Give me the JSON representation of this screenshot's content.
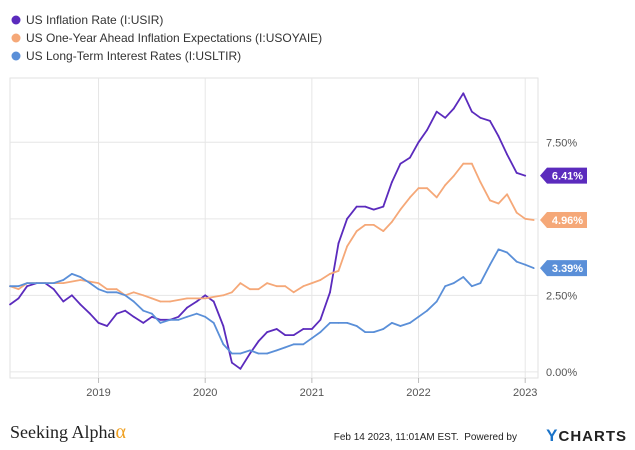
{
  "chart_data": {
    "type": "line",
    "title": "",
    "xlabel": "",
    "ylabel": "",
    "xlim": [
      2018.17,
      2023.12
    ],
    "ylim": [
      -0.2,
      9.6
    ],
    "x_ticks": [
      {
        "value": 2019,
        "label": "2019"
      },
      {
        "value": 2020,
        "label": "2020"
      },
      {
        "value": 2021,
        "label": "2021"
      },
      {
        "value": 2022,
        "label": "2022"
      },
      {
        "value": 2023,
        "label": "2023"
      }
    ],
    "y_ticks": [
      {
        "value": 0.0,
        "label": "0.00%"
      },
      {
        "value": 2.5,
        "label": "2.50%"
      },
      {
        "value": 5.0,
        "label": "5.00%"
      },
      {
        "value": 7.5,
        "label": "7.50%"
      }
    ],
    "grid": true,
    "legend_position": "top-left",
    "series": [
      {
        "name": "US Inflation Rate (I:USIR)",
        "color": "#5b2bbd",
        "last_label": "6.41%",
        "points": [
          [
            2018.17,
            2.2
          ],
          [
            2018.25,
            2.4
          ],
          [
            2018.33,
            2.8
          ],
          [
            2018.42,
            2.9
          ],
          [
            2018.5,
            2.9
          ],
          [
            2018.58,
            2.7
          ],
          [
            2018.67,
            2.3
          ],
          [
            2018.75,
            2.5
          ],
          [
            2018.83,
            2.2
          ],
          [
            2018.92,
            1.9
          ],
          [
            2019.0,
            1.6
          ],
          [
            2019.08,
            1.5
          ],
          [
            2019.17,
            1.9
          ],
          [
            2019.25,
            2.0
          ],
          [
            2019.33,
            1.8
          ],
          [
            2019.42,
            1.6
          ],
          [
            2019.5,
            1.8
          ],
          [
            2019.58,
            1.7
          ],
          [
            2019.67,
            1.7
          ],
          [
            2019.75,
            1.8
          ],
          [
            2019.83,
            2.1
          ],
          [
            2019.92,
            2.3
          ],
          [
            2020.0,
            2.5
          ],
          [
            2020.08,
            2.3
          ],
          [
            2020.17,
            1.5
          ],
          [
            2020.25,
            0.3
          ],
          [
            2020.33,
            0.1
          ],
          [
            2020.42,
            0.6
          ],
          [
            2020.5,
            1.0
          ],
          [
            2020.58,
            1.3
          ],
          [
            2020.67,
            1.4
          ],
          [
            2020.75,
            1.2
          ],
          [
            2020.83,
            1.2
          ],
          [
            2020.92,
            1.4
          ],
          [
            2021.0,
            1.4
          ],
          [
            2021.08,
            1.7
          ],
          [
            2021.17,
            2.6
          ],
          [
            2021.25,
            4.2
          ],
          [
            2021.33,
            5.0
          ],
          [
            2021.42,
            5.4
          ],
          [
            2021.5,
            5.4
          ],
          [
            2021.58,
            5.3
          ],
          [
            2021.67,
            5.4
          ],
          [
            2021.75,
            6.2
          ],
          [
            2021.83,
            6.8
          ],
          [
            2021.92,
            7.0
          ],
          [
            2022.0,
            7.5
          ],
          [
            2022.08,
            7.9
          ],
          [
            2022.17,
            8.5
          ],
          [
            2022.25,
            8.3
          ],
          [
            2022.33,
            8.6
          ],
          [
            2022.42,
            9.1
          ],
          [
            2022.5,
            8.5
          ],
          [
            2022.58,
            8.3
          ],
          [
            2022.67,
            8.2
          ],
          [
            2022.75,
            7.7
          ],
          [
            2022.83,
            7.1
          ],
          [
            2022.92,
            6.5
          ],
          [
            2023.0,
            6.41
          ]
        ]
      },
      {
        "name": "US One-Year Ahead Inflation Expectations (I:USOYAIE)",
        "color": "#f5a878",
        "last_label": "4.96%",
        "points": [
          [
            2018.17,
            2.8
          ],
          [
            2018.25,
            2.7
          ],
          [
            2018.33,
            2.9
          ],
          [
            2018.5,
            2.9
          ],
          [
            2018.67,
            2.9
          ],
          [
            2018.83,
            3.0
          ],
          [
            2019.0,
            2.9
          ],
          [
            2019.08,
            2.7
          ],
          [
            2019.17,
            2.7
          ],
          [
            2019.25,
            2.5
          ],
          [
            2019.33,
            2.6
          ],
          [
            2019.42,
            2.5
          ],
          [
            2019.5,
            2.4
          ],
          [
            2019.58,
            2.3
          ],
          [
            2019.67,
            2.3
          ],
          [
            2019.83,
            2.4
          ],
          [
            2019.92,
            2.4
          ],
          [
            2020.0,
            2.4
          ],
          [
            2020.17,
            2.5
          ],
          [
            2020.25,
            2.6
          ],
          [
            2020.33,
            2.9
          ],
          [
            2020.42,
            2.7
          ],
          [
            2020.5,
            2.7
          ],
          [
            2020.58,
            2.9
          ],
          [
            2020.67,
            2.8
          ],
          [
            2020.75,
            2.8
          ],
          [
            2020.83,
            2.6
          ],
          [
            2020.92,
            2.8
          ],
          [
            2021.0,
            2.9
          ],
          [
            2021.08,
            3.0
          ],
          [
            2021.17,
            3.2
          ],
          [
            2021.25,
            3.3
          ],
          [
            2021.33,
            4.1
          ],
          [
            2021.42,
            4.6
          ],
          [
            2021.5,
            4.8
          ],
          [
            2021.58,
            4.8
          ],
          [
            2021.67,
            4.6
          ],
          [
            2021.75,
            4.9
          ],
          [
            2021.83,
            5.3
          ],
          [
            2021.92,
            5.7
          ],
          [
            2022.0,
            6.0
          ],
          [
            2022.08,
            6.0
          ],
          [
            2022.17,
            5.7
          ],
          [
            2022.25,
            6.1
          ],
          [
            2022.33,
            6.4
          ],
          [
            2022.42,
            6.8
          ],
          [
            2022.5,
            6.8
          ],
          [
            2022.58,
            6.2
          ],
          [
            2022.67,
            5.6
          ],
          [
            2022.75,
            5.5
          ],
          [
            2022.83,
            5.8
          ],
          [
            2022.92,
            5.2
          ],
          [
            2023.0,
            5.0
          ],
          [
            2023.08,
            4.96
          ]
        ]
      },
      {
        "name": "US Long-Term Interest Rates (I:USLTIR)",
        "color": "#5a8fd8",
        "last_label": "3.39%",
        "points": [
          [
            2018.17,
            2.8
          ],
          [
            2018.25,
            2.8
          ],
          [
            2018.33,
            2.9
          ],
          [
            2018.42,
            2.9
          ],
          [
            2018.5,
            2.9
          ],
          [
            2018.58,
            2.9
          ],
          [
            2018.67,
            3.0
          ],
          [
            2018.75,
            3.2
          ],
          [
            2018.83,
            3.1
          ],
          [
            2018.92,
            2.9
          ],
          [
            2019.0,
            2.7
          ],
          [
            2019.08,
            2.6
          ],
          [
            2019.17,
            2.6
          ],
          [
            2019.25,
            2.5
          ],
          [
            2019.33,
            2.3
          ],
          [
            2019.42,
            2.0
          ],
          [
            2019.5,
            1.9
          ],
          [
            2019.58,
            1.6
          ],
          [
            2019.67,
            1.7
          ],
          [
            2019.75,
            1.7
          ],
          [
            2019.83,
            1.8
          ],
          [
            2019.92,
            1.9
          ],
          [
            2020.0,
            1.8
          ],
          [
            2020.08,
            1.6
          ],
          [
            2020.17,
            0.9
          ],
          [
            2020.25,
            0.6
          ],
          [
            2020.33,
            0.6
          ],
          [
            2020.42,
            0.7
          ],
          [
            2020.5,
            0.6
          ],
          [
            2020.58,
            0.6
          ],
          [
            2020.67,
            0.7
          ],
          [
            2020.75,
            0.8
          ],
          [
            2020.83,
            0.9
          ],
          [
            2020.92,
            0.9
          ],
          [
            2021.0,
            1.1
          ],
          [
            2021.08,
            1.3
          ],
          [
            2021.17,
            1.6
          ],
          [
            2021.25,
            1.6
          ],
          [
            2021.33,
            1.6
          ],
          [
            2021.42,
            1.5
          ],
          [
            2021.5,
            1.3
          ],
          [
            2021.58,
            1.3
          ],
          [
            2021.67,
            1.4
          ],
          [
            2021.75,
            1.6
          ],
          [
            2021.83,
            1.5
          ],
          [
            2021.92,
            1.6
          ],
          [
            2022.0,
            1.8
          ],
          [
            2022.08,
            2.0
          ],
          [
            2022.17,
            2.3
          ],
          [
            2022.25,
            2.8
          ],
          [
            2022.33,
            2.9
          ],
          [
            2022.42,
            3.1
          ],
          [
            2022.5,
            2.8
          ],
          [
            2022.58,
            2.9
          ],
          [
            2022.67,
            3.5
          ],
          [
            2022.75,
            4.0
          ],
          [
            2022.83,
            3.9
          ],
          [
            2022.92,
            3.6
          ],
          [
            2023.0,
            3.5
          ],
          [
            2023.08,
            3.39
          ]
        ]
      }
    ]
  },
  "footer": {
    "brand": "Seeking Alpha",
    "brand_symbol": "α",
    "timestamp": "Feb 14 2023, 11:01AM EST.",
    "powered_by": "Powered by",
    "provider_initial": "Y",
    "provider_rest": "CHARTS"
  }
}
